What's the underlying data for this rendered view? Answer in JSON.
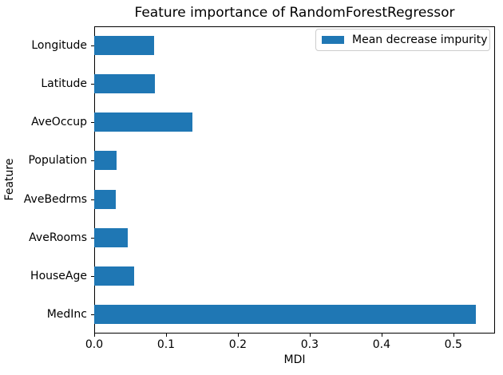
{
  "chart_data": {
    "type": "bar",
    "orientation": "horizontal",
    "title": "Feature importance of RandomForestRegressor",
    "xlabel": "MDI",
    "ylabel": "Feature",
    "category_order": "top-to-bottom",
    "categories": [
      "Longitude",
      "Latitude",
      "AveOccup",
      "Population",
      "AveBedrms",
      "AveRooms",
      "HouseAge",
      "MedInc"
    ],
    "series": [
      {
        "name": "Mean decrease impurity",
        "values": [
          0.083,
          0.085,
          0.137,
          0.031,
          0.03,
          0.047,
          0.056,
          0.531
        ]
      }
    ],
    "xlim": [
      0,
      0.558
    ],
    "xticks": [
      0.0,
      0.1,
      0.2,
      0.3,
      0.4,
      0.5
    ],
    "xtick_labels": [
      "0.0",
      "0.1",
      "0.2",
      "0.3",
      "0.4",
      "0.5"
    ],
    "grid": false,
    "legend_position": "upper right",
    "bar_color": "#1f77b4",
    "spine_color": "#000000",
    "legend_border_color": "#cccccc"
  }
}
